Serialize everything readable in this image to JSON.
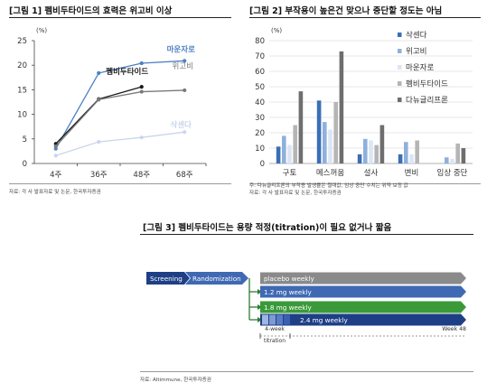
{
  "fig1": {
    "title": "[그림 1] 펨비두타이드의 효력은 위고비 이상",
    "source": "자료: 각 사 발표자료 및 논문, 한국투자증권",
    "chart_data": {
      "type": "line",
      "ylabel": "(%)",
      "ylim": [
        0,
        25
      ],
      "yticks": [
        0,
        5,
        10,
        15,
        20,
        25
      ],
      "categories": [
        "4주",
        "36주",
        "48주",
        "68주"
      ],
      "series": [
        {
          "name": "마운자로",
          "color": "#4d7fc4",
          "values": [
            3.0,
            18.4,
            20.4,
            20.9
          ]
        },
        {
          "name": "펨비두타이드",
          "color": "#1a1a1a",
          "values": [
            4.0,
            13.1,
            15.6,
            null
          ]
        },
        {
          "name": "위고비",
          "color": "#7a7a7a",
          "values": [
            3.5,
            13.0,
            14.6,
            14.9
          ]
        },
        {
          "name": "삭센다",
          "color": "#c9d6ec",
          "values": [
            1.6,
            4.4,
            5.3,
            6.4
          ]
        }
      ],
      "grid": false,
      "legend": "labels at line ends"
    }
  },
  "fig2": {
    "title": "[그림 2] 부작용이 높은건 맞으나 중단할 정도는 아님",
    "note": "주: 다뉴글리프론의 부작용 발생률은 절대값, 임상 중단 수치는 위약 보정 값",
    "source": "자료: 각 사 발표자료 및 논문, 한국투자증권",
    "chart_data": {
      "type": "bar",
      "ylabel": "(%)",
      "ylim": [
        0,
        80
      ],
      "yticks": [
        0,
        10,
        20,
        30,
        40,
        50,
        60,
        70,
        80
      ],
      "categories": [
        "구토",
        "메스꺼움",
        "설사",
        "변비",
        "임상 중단"
      ],
      "series": [
        {
          "name": "삭센다",
          "color": "#3a6fb5",
          "values": [
            11,
            41,
            6,
            6,
            0
          ]
        },
        {
          "name": "위고비",
          "color": "#8fb0dc",
          "values": [
            18,
            27,
            16,
            14,
            4
          ]
        },
        {
          "name": "마운자로",
          "color": "#dbe5f3",
          "values": [
            12,
            22,
            15,
            6,
            3
          ]
        },
        {
          "name": "펨비두타이드",
          "color": "#b5b5b5",
          "values": [
            25,
            40,
            12,
            15,
            13
          ]
        },
        {
          "name": "다뉴글리프론",
          "color": "#6e6e6e",
          "values": [
            47,
            73,
            25,
            0,
            10
          ]
        }
      ],
      "grid": true,
      "legend": "right"
    }
  },
  "fig3": {
    "title": "[그림 3] 펨비두타이드는 용량 적정(titration)이 필요 없거나 짧음",
    "source": "자료: Altimmune, 한국투자증권",
    "screening": "Screening",
    "randomization": "Randomization",
    "arms": [
      "placebo weekly",
      "1.2 mg weekly",
      "1.8 mg weekly",
      "2.4 mg weekly"
    ],
    "titration": "4-week\ntitration",
    "week": "Week 48",
    "colors": {
      "dark": "#1e3f86",
      "mid": "#3f69b3",
      "gray": "#8a8a8a",
      "green": "#3a9a3a"
    }
  }
}
